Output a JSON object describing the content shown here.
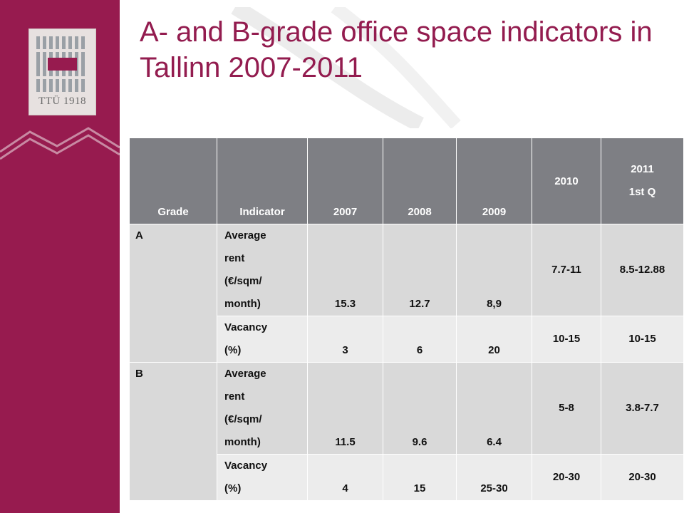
{
  "title": "A- and B-grade office space indicators in Tallinn  2007-2011",
  "logo": {
    "caption": "TTÜ 1918"
  },
  "colors": {
    "brand": "#971b4f",
    "header_bg": "#7e7f84",
    "row_dark": "#d9d9d9",
    "row_light": "#ececec"
  },
  "table": {
    "headers": {
      "grade": "Grade",
      "indicator": "Indicator",
      "y2007": "2007",
      "y2008": "2008",
      "y2009": "2009",
      "y2010": "2010",
      "y2011_year": "2011",
      "y2011_q": "1st Q"
    },
    "rows": [
      {
        "grade": "A",
        "indicator_lines": [
          "Average",
          "rent",
          "(€/sqm/",
          "month)"
        ],
        "y2007": "15.3",
        "y2008": "12.7",
        "y2009": "8,9",
        "y2010": "7.7-11",
        "y2011": "8.5-12.88"
      },
      {
        "indicator_lines": [
          "Vacancy",
          "(%)"
        ],
        "y2007": "3",
        "y2008": "6",
        "y2009": "20",
        "y2010": "10-15",
        "y2011": "10-15"
      },
      {
        "grade": "B",
        "indicator_lines": [
          "Average",
          "rent",
          "(€/sqm/",
          "month)"
        ],
        "y2007": "11.5",
        "y2008": "9.6",
        "y2009": "6.4",
        "y2010": "5-8",
        "y2011": "3.8-7.7"
      },
      {
        "indicator_lines": [
          "Vacancy",
          "(%)"
        ],
        "y2007": "4",
        "y2008": "15",
        "y2009": "25-30",
        "y2010": "20-30",
        "y2011": "20-30"
      }
    ]
  }
}
